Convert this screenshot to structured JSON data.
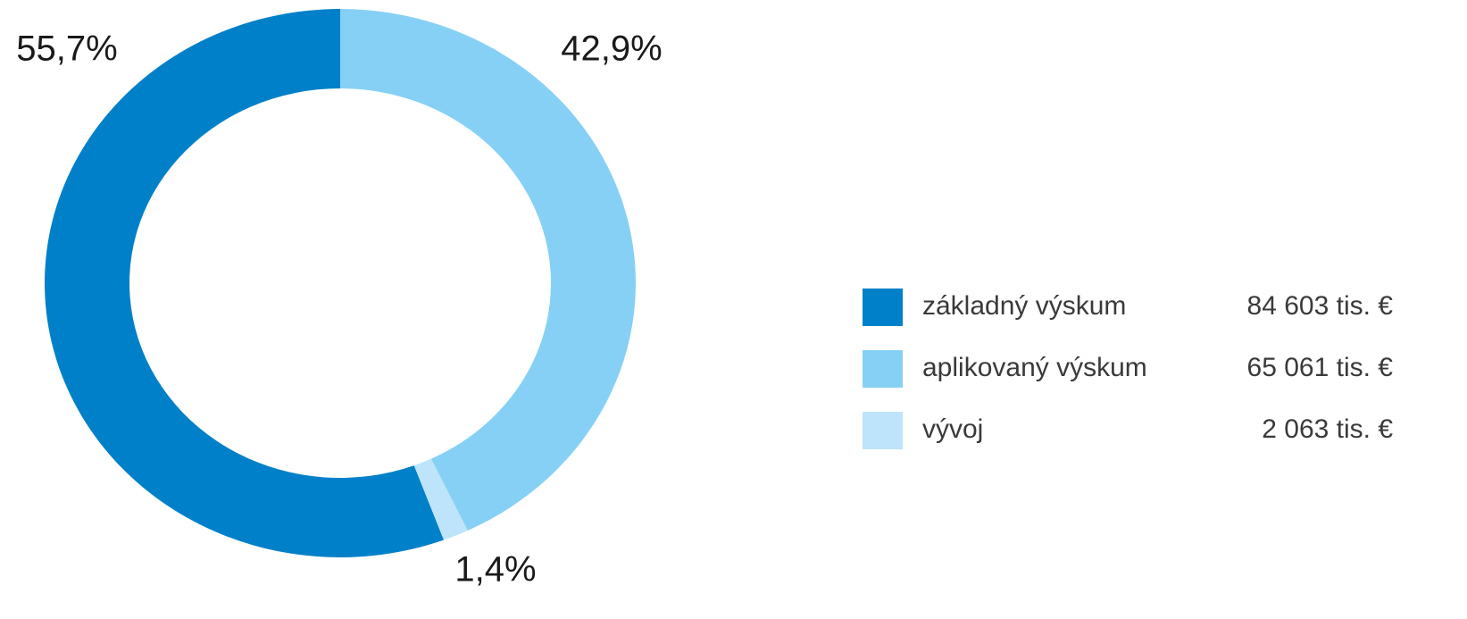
{
  "chart_data": {
    "type": "donut",
    "categories": [
      "základný výskum",
      "aplikovaný výskum",
      "vývoj"
    ],
    "values": [
      55.7,
      42.9,
      1.4
    ],
    "value_labels": [
      "55,7%",
      "42,9%",
      "1,4%"
    ],
    "colors": [
      "#0080c8",
      "#87d0f5",
      "#bde4fa"
    ],
    "amounts": [
      84603,
      65061,
      2063
    ],
    "amount_labels": [
      "84 603 tis. €",
      "65 061 tis. €",
      "2 063 tis. €"
    ],
    "legend": "right"
  }
}
